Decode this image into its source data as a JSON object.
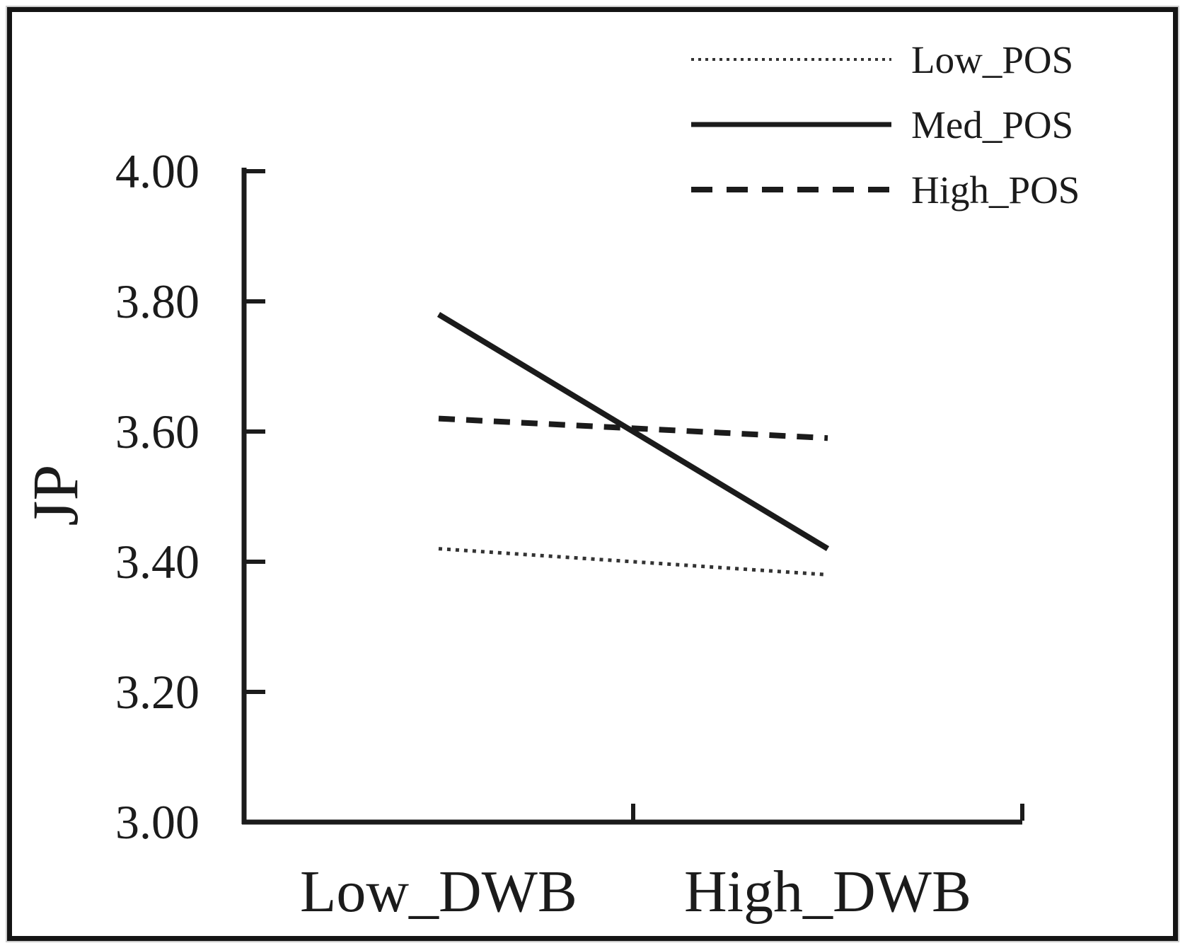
{
  "chart_data": {
    "type": "line",
    "title": "",
    "xlabel": "",
    "ylabel": "JP",
    "categories": [
      "Low_DWB",
      "High_DWB"
    ],
    "series": [
      {
        "name": "Low_POS",
        "style": "dotted",
        "values": [
          3.42,
          3.38
        ]
      },
      {
        "name": "Med_POS",
        "style": "solid",
        "values": [
          3.78,
          3.42
        ]
      },
      {
        "name": "High_POS",
        "style": "dashed",
        "values": [
          3.62,
          3.59
        ]
      }
    ],
    "y_ticks": [
      4.0,
      3.8,
      3.6,
      3.4,
      3.2,
      3.0
    ],
    "y_tick_labels": [
      "4.00",
      "3.80",
      "3.60",
      "3.40",
      "3.20",
      "3.00"
    ],
    "ylim": [
      3.0,
      4.0
    ],
    "grid": false,
    "legend_position": "top-right"
  },
  "colors": {
    "ink": "#1b1b1b",
    "dotted_ink": "#333333",
    "background": "#ffffff",
    "frame": "#141414"
  }
}
